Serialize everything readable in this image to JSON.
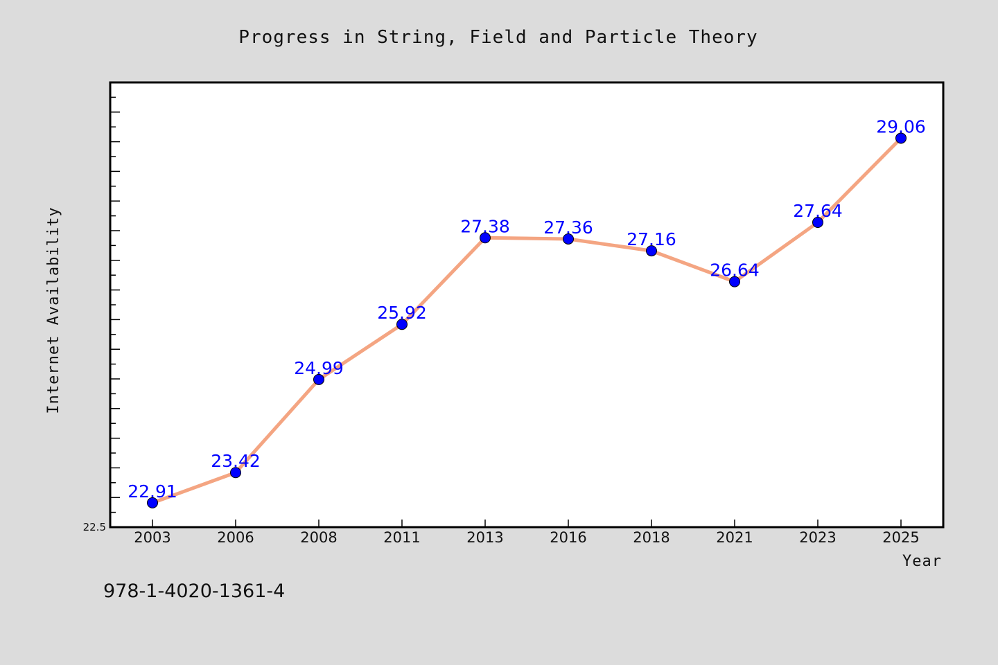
{
  "chart_data": {
    "type": "line",
    "title": "Progress in String, Field and Particle Theory",
    "xlabel": "Year",
    "ylabel": "Internet Availability",
    "categories": [
      "2003",
      "2006",
      "2008",
      "2011",
      "2013",
      "2016",
      "2018",
      "2021",
      "2023",
      "2025"
    ],
    "values": [
      22.91,
      23.42,
      24.99,
      25.92,
      27.38,
      27.36,
      27.16,
      26.64,
      27.64,
      29.06
    ],
    "data_labels": [
      "22.91",
      "23.42",
      "24.99",
      "25.92",
      "27.38",
      "27.36",
      "27.16",
      "26.64",
      "27.64",
      "29.06"
    ],
    "ylim": [
      22.5,
      30.0
    ],
    "y_min_label": "22.5",
    "grid": false,
    "line_color": "#f4a582",
    "marker_color": "#0000ff",
    "label_color": "#0000ff",
    "background_color": "#dcdcdc",
    "plot_background": "#ffffff"
  },
  "footnote": "978-1-4020-1361-4"
}
